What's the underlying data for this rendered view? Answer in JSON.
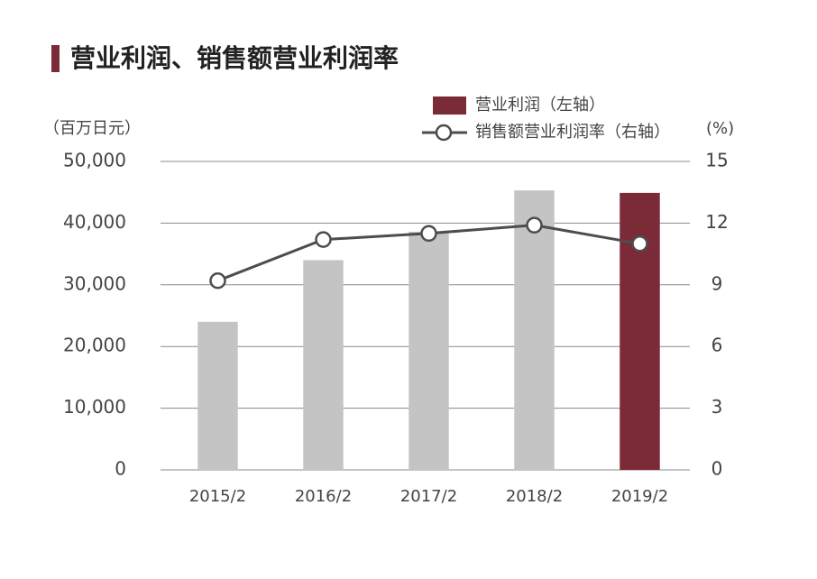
{
  "chart_data": {
    "type": "bar-line",
    "title": "营业利润、销售额营业利润率",
    "y_label": "（百万日元）",
    "y2_label": "(%)",
    "categories": [
      "2015/2",
      "2016/2",
      "2017/2",
      "2018/2",
      "2019/2"
    ],
    "series": [
      {
        "name": "营业利润（左轴）",
        "type": "bar",
        "color": "#7b2b37",
        "colors": [
          "#c4c4c4",
          "#c4c4c4",
          "#c4c4c4",
          "#c4c4c4",
          "#7b2b37"
        ],
        "values": [
          24000,
          34000,
          38600,
          45300,
          44900
        ]
      },
      {
        "name": "销售额营业利润率（右轴）",
        "type": "line",
        "axis": "y2",
        "color": "#4d4d4d",
        "values": [
          9.2,
          11.2,
          11.5,
          11.9,
          11.0
        ]
      }
    ],
    "ylim": [
      0,
      50000
    ],
    "yticks": [
      0,
      {
        "value": 10000,
        "label": "10,000"
      },
      {
        "value": 20000,
        "label": "20,000"
      },
      {
        "value": 30000,
        "label": "30,000"
      },
      {
        "value": 40000,
        "label": "40,000"
      },
      {
        "value": 50000,
        "label": "50,000"
      }
    ],
    "y2lim": [
      0,
      15
    ],
    "y2ticks": [
      0,
      3,
      6,
      9,
      12,
      15
    ],
    "grid": true
  }
}
